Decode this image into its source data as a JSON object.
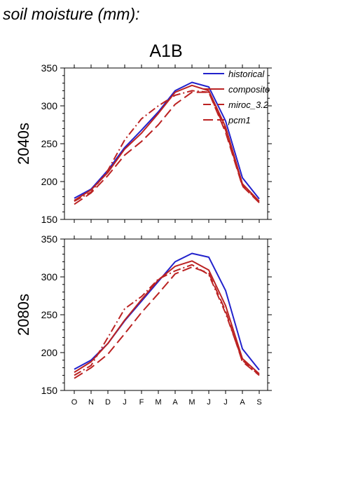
{
  "heading": "soil moisture (mm):",
  "chart_data": {
    "type": "line",
    "title": "A1B",
    "categories": [
      "O",
      "N",
      "D",
      "J",
      "F",
      "M",
      "A",
      "M",
      "J",
      "J",
      "A",
      "S"
    ],
    "ylim": [
      150,
      350
    ],
    "yticks": [
      150,
      200,
      250,
      300,
      350
    ],
    "grid": false,
    "legend_position": "top-right",
    "series_styles": [
      {
        "name": "historical",
        "color": "#2222cc",
        "dash": "solid"
      },
      {
        "name": "composite",
        "color": "#bb2222",
        "dash": "solid"
      },
      {
        "name": "miroc_3.2",
        "color": "#bb2222",
        "dash": "dashdot"
      },
      {
        "name": "pcm1",
        "color": "#bb2222",
        "dash": "longdash"
      }
    ],
    "panels": [
      {
        "label": "2040s",
        "series": [
          {
            "name": "historical",
            "values": [
              178,
              190,
              215,
              245,
              268,
              292,
              320,
              331,
              325,
              280,
              205,
              177
            ]
          },
          {
            "name": "composite",
            "values": [
              175,
              189,
              212,
              243,
              264,
              290,
              318,
              327,
              320,
              272,
              197,
              174
            ]
          },
          {
            "name": "miroc_3.2",
            "values": [
              174,
              186,
              215,
              255,
              283,
              300,
              314,
              320,
              318,
              268,
              195,
              173
            ]
          },
          {
            "name": "pcm1",
            "values": [
              170,
              185,
              208,
              235,
              253,
              275,
              302,
              318,
              318,
              265,
              194,
              172
            ]
          }
        ]
      },
      {
        "label": "2080s",
        "series": [
          {
            "name": "historical",
            "values": [
              178,
              190,
              212,
              242,
              268,
              294,
              320,
              331,
              326,
              282,
              205,
              177
            ]
          },
          {
            "name": "composite",
            "values": [
              174,
              188,
              212,
              243,
              270,
              296,
              314,
              321,
              309,
              262,
              192,
              172
            ]
          },
          {
            "name": "miroc_3.2",
            "values": [
              170,
              183,
              220,
              258,
              274,
              297,
              308,
              316,
              303,
              252,
              190,
              170
            ]
          },
          {
            "name": "pcm1",
            "values": [
              166,
              180,
              198,
              225,
              253,
              278,
              304,
              313,
              305,
              255,
              188,
              170
            ]
          }
        ]
      }
    ]
  }
}
